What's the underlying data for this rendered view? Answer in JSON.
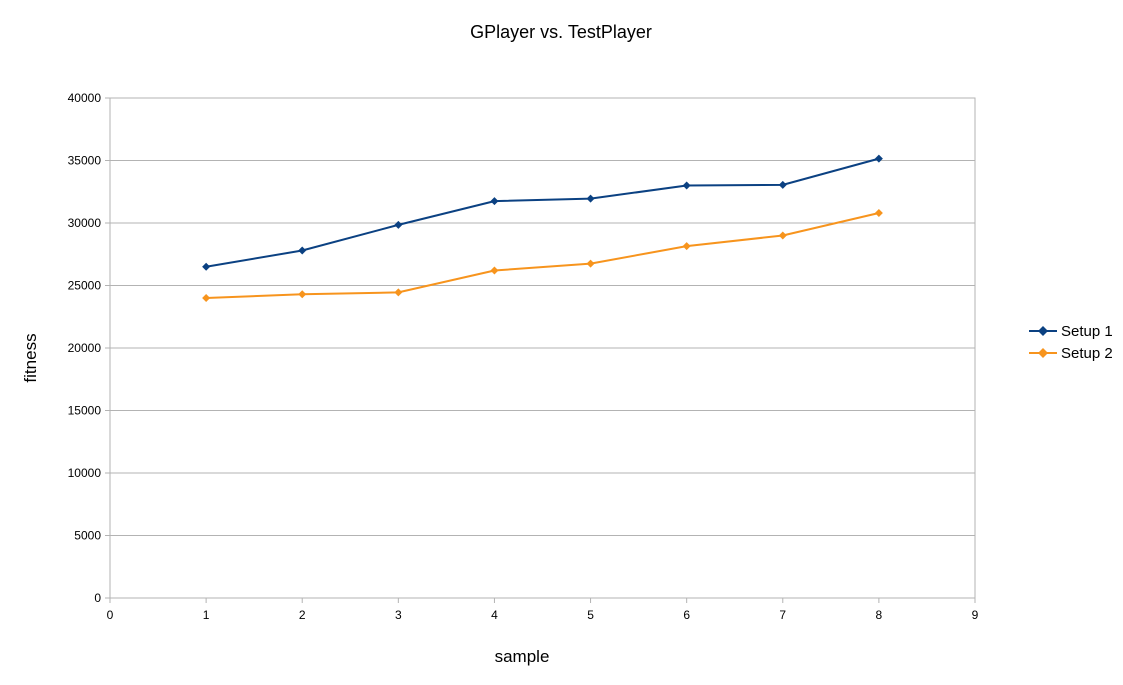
{
  "chart_data": {
    "type": "line",
    "title": "GPlayer vs. TestPlayer",
    "xlabel": "sample",
    "ylabel": "fitness",
    "xlim": [
      0,
      9
    ],
    "ylim": [
      0,
      40000
    ],
    "x_ticks": [
      0,
      1,
      2,
      3,
      4,
      5,
      6,
      7,
      8,
      9
    ],
    "y_ticks": [
      0,
      5000,
      10000,
      15000,
      20000,
      25000,
      30000,
      35000,
      40000
    ],
    "grid": true,
    "legend_position": "right",
    "x": [
      1,
      2,
      3,
      4,
      5,
      6,
      7,
      8
    ],
    "series": [
      {
        "name": "Setup 1",
        "color": "#0b4182",
        "marker": "diamond",
        "values": [
          26500,
          27800,
          29850,
          31750,
          31950,
          33000,
          33050,
          35150
        ]
      },
      {
        "name": "Setup 2",
        "color": "#f7941d",
        "marker": "diamond",
        "values": [
          24000,
          24300,
          24450,
          26200,
          26750,
          28150,
          29000,
          30800
        ]
      }
    ]
  }
}
